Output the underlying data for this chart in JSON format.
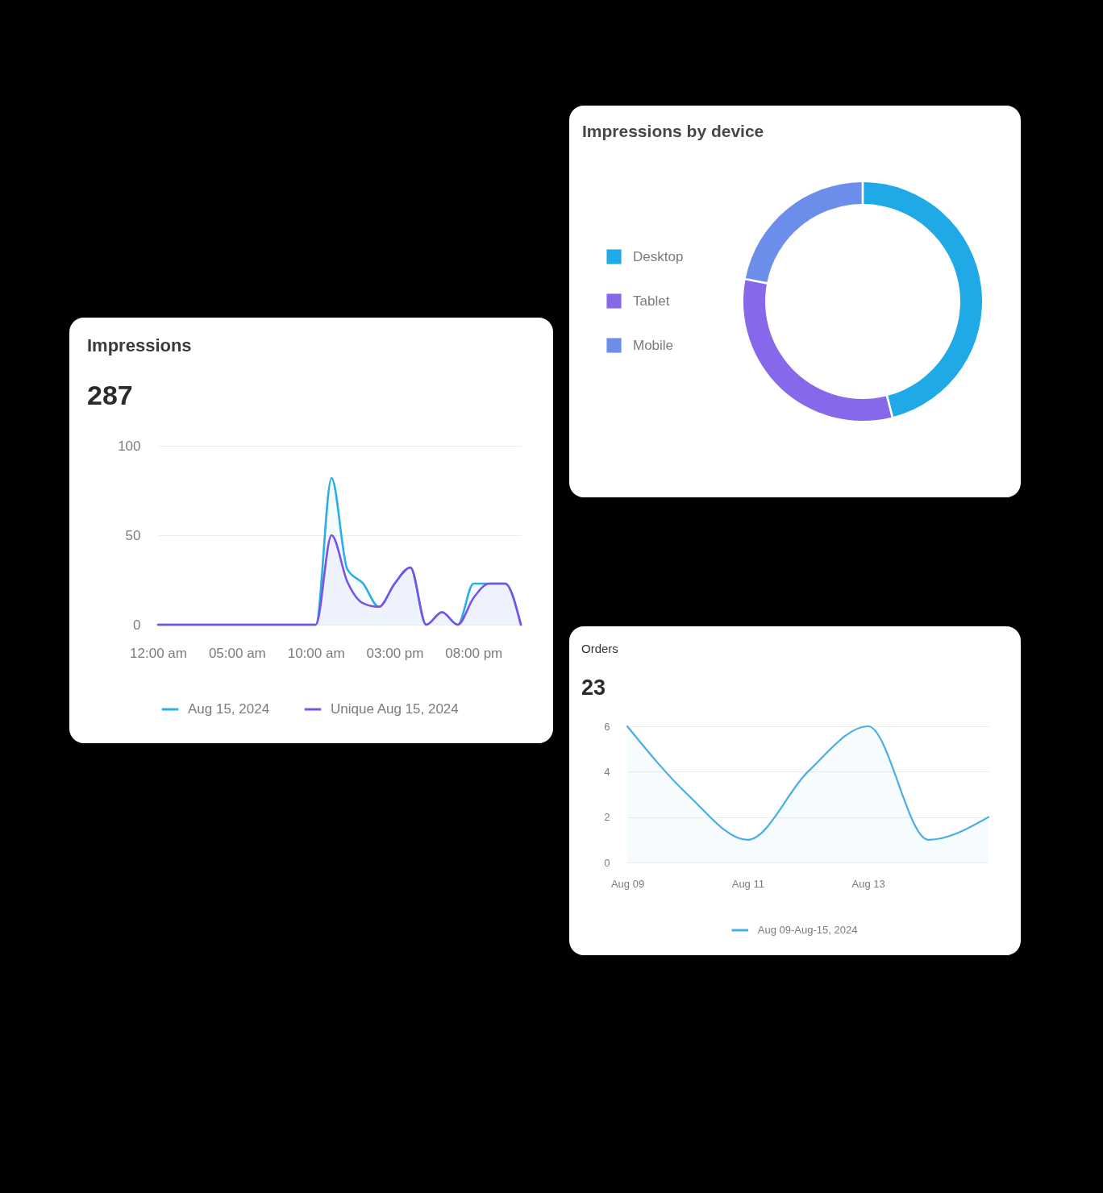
{
  "chart_data": [
    {
      "type": "area",
      "title": "Impressions",
      "subtitle": "287",
      "x": [
        0,
        1,
        2,
        3,
        4,
        5,
        6,
        7,
        8,
        9,
        10,
        11,
        12,
        13,
        14,
        15,
        16,
        17,
        18,
        19,
        20,
        21,
        22,
        23
      ],
      "series": [
        {
          "name": "Aug 15, 2024",
          "color": "#2aaee8",
          "values": [
            0,
            0,
            0,
            0,
            0,
            0,
            0,
            0,
            0,
            0,
            0,
            82,
            31,
            23,
            10,
            23,
            32,
            0,
            7,
            0,
            23,
            23,
            23,
            0
          ]
        },
        {
          "name": "Unique Aug 15, 2024",
          "color": "#7a52e8",
          "values": [
            0,
            0,
            0,
            0,
            0,
            0,
            0,
            0,
            0,
            0,
            0,
            50,
            24,
            12,
            10,
            23,
            32,
            0,
            7,
            0,
            15,
            23,
            23,
            0
          ]
        }
      ],
      "xlim": [
        0,
        23
      ],
      "xticks": [
        {
          "value": 0,
          "label": "12:00 am"
        },
        {
          "value": 5,
          "label": "05:00 am"
        },
        {
          "value": 10,
          "label": "10:00 am"
        },
        {
          "value": 15,
          "label": "03:00 pm"
        },
        {
          "value": 20,
          "label": "08:00 pm"
        }
      ],
      "ylim": [
        0,
        100
      ],
      "yticks": [
        0,
        50,
        100
      ],
      "grid": "y",
      "legend": "bottom"
    },
    {
      "type": "donut",
      "title": "Impressions by device",
      "categories": [
        "Desktop",
        "Tablet",
        "Mobile"
      ],
      "values": [
        46,
        32,
        22
      ],
      "colors": [
        "#1fa9e6",
        "#8767ea",
        "#6a8ee9"
      ],
      "legend": "left"
    },
    {
      "type": "area",
      "title": "Orders",
      "subtitle": "23",
      "x": [
        "2024-08-09",
        "2024-08-10",
        "2024-08-11",
        "2024-08-12",
        "2024-08-13",
        "2024-08-14",
        "2024-08-15"
      ],
      "series": [
        {
          "name": "Aug 09-Aug-15, 2024",
          "color": "#4aaee6",
          "values": [
            6,
            3,
            1,
            4,
            6,
            1,
            2
          ]
        }
      ],
      "xlim": [
        "2024-08-09",
        "2024-08-15"
      ],
      "xticks": [
        {
          "value": "2024-08-09",
          "label": "Aug 09"
        },
        {
          "value": "2024-08-11",
          "label": "Aug 11"
        },
        {
          "value": "2024-08-13",
          "label": "Aug 13"
        }
      ],
      "ylim": [
        0,
        6
      ],
      "yticks": [
        0,
        2,
        4,
        6
      ],
      "grid": "y",
      "legend": "bottom"
    }
  ]
}
